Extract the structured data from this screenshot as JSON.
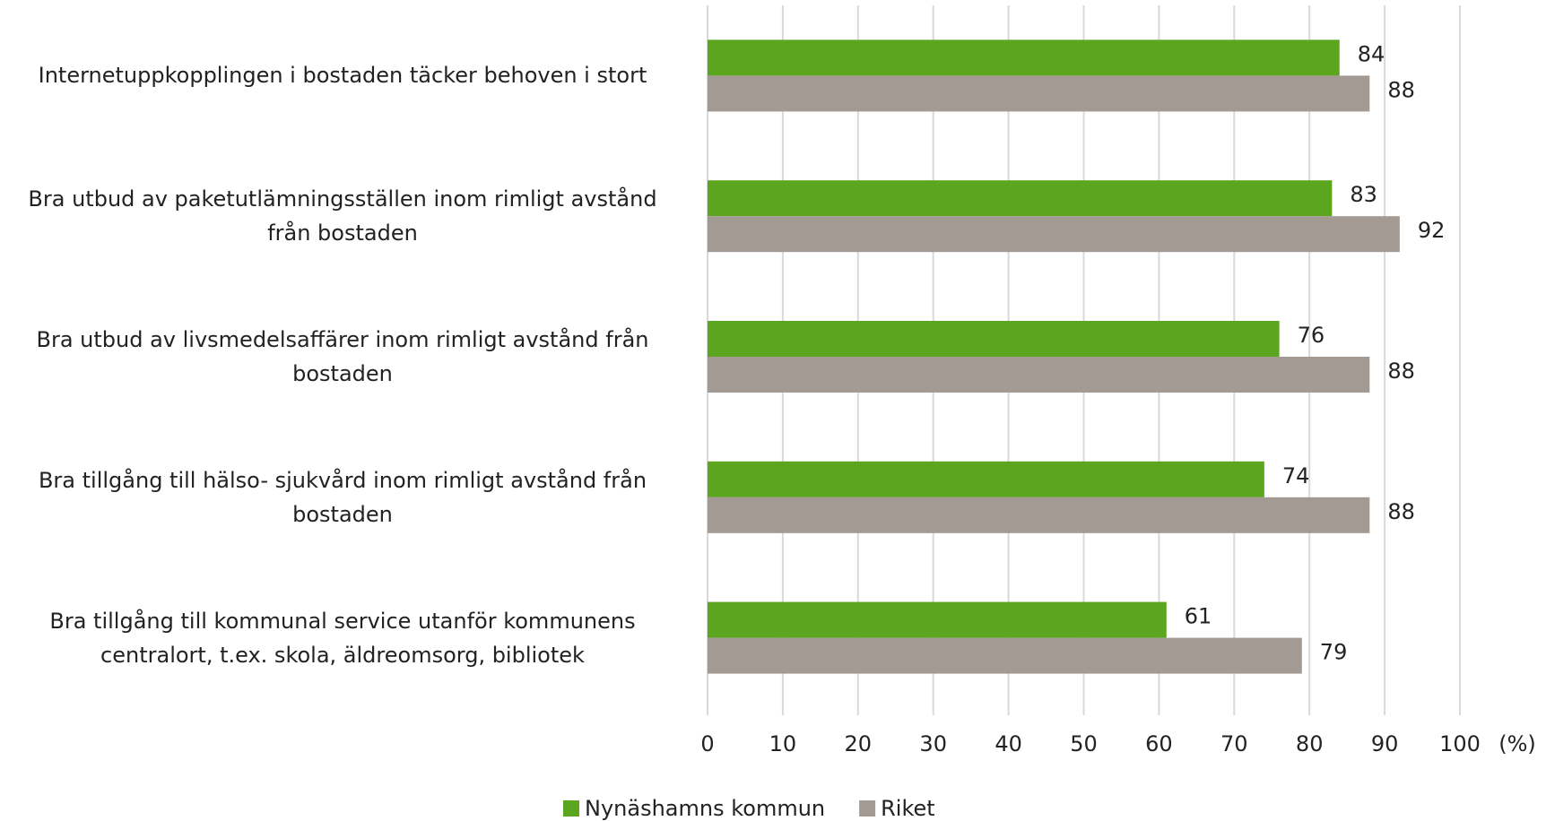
{
  "chart_data": {
    "type": "hbar",
    "categories": [
      "Internetuppkopplingen i bostaden täcker behoven i stort",
      "Bra utbud av paketutlämningsställen inom rimligt avstånd från bostaden",
      "Bra utbud av livsmedelsaffärer inom rimligt avstånd från bostaden",
      "Bra tillgång till hälso- sjukvård inom rimligt avstånd från bostaden",
      "Bra tillgång till kommunal service utanför kommunens centralort, t.ex. skola, äldreomsorg, bibliotek"
    ],
    "series": [
      {
        "name": "Nynäshamns kommun",
        "color": "#5ba51f",
        "values": [
          84,
          83,
          76,
          74,
          61
        ]
      },
      {
        "name": "Riket",
        "color": "#a39a94",
        "values": [
          88,
          92,
          88,
          88,
          79
        ]
      }
    ],
    "x_label": "(%)",
    "xlim": [
      0,
      100
    ],
    "xticks": [
      0,
      10,
      20,
      30,
      40,
      50,
      60,
      70,
      80,
      90,
      100
    ],
    "grid": true,
    "legend": "bottom"
  }
}
